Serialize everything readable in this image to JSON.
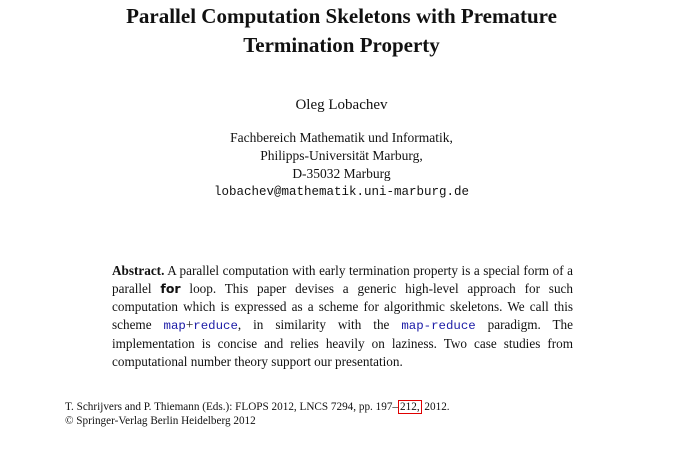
{
  "paper": {
    "title_line1": "Parallel Computation Skeletons with Premature",
    "title_line2": "Termination Property",
    "author": "Oleg Lobachev",
    "affiliation": {
      "line1": "Fachbereich Mathematik und Informatik,",
      "line2": "Philipps-Universität Marburg,",
      "line3": "D-35032 Marburg",
      "email": "lobachev@mathematik.uni-marburg.de"
    },
    "abstract": {
      "label": "Abstract.",
      "p1": " A parallel computation with early termination property is a special form of a parallel ",
      "kw_for": "for",
      "p2": " loop. This paper devises a generic high-level approach for such computation which is expressed as a scheme for algorithmic skeletons. We call this scheme ",
      "code_map": "map",
      "plus": "+",
      "code_reduce": "reduce",
      "p3": ", in similarity with the ",
      "code_mapreduce": "map-reduce",
      "p4": " paradigm. The implementation is concise and relies heavily on laziness. Two case studies from computational number theory support our presentation."
    },
    "footer": {
      "line1_pre": "T. Schrijvers and P. Thiemann (Eds.): FLOPS 2012, LNCS 7294, pp. 197–",
      "line1_page": "212,",
      "line1_post": " 2012.",
      "line2": "© Springer-Verlag Berlin Heidelberg 2012"
    },
    "colors": {
      "code": "#1a1aa6",
      "highlight_box": "#e00000"
    }
  }
}
